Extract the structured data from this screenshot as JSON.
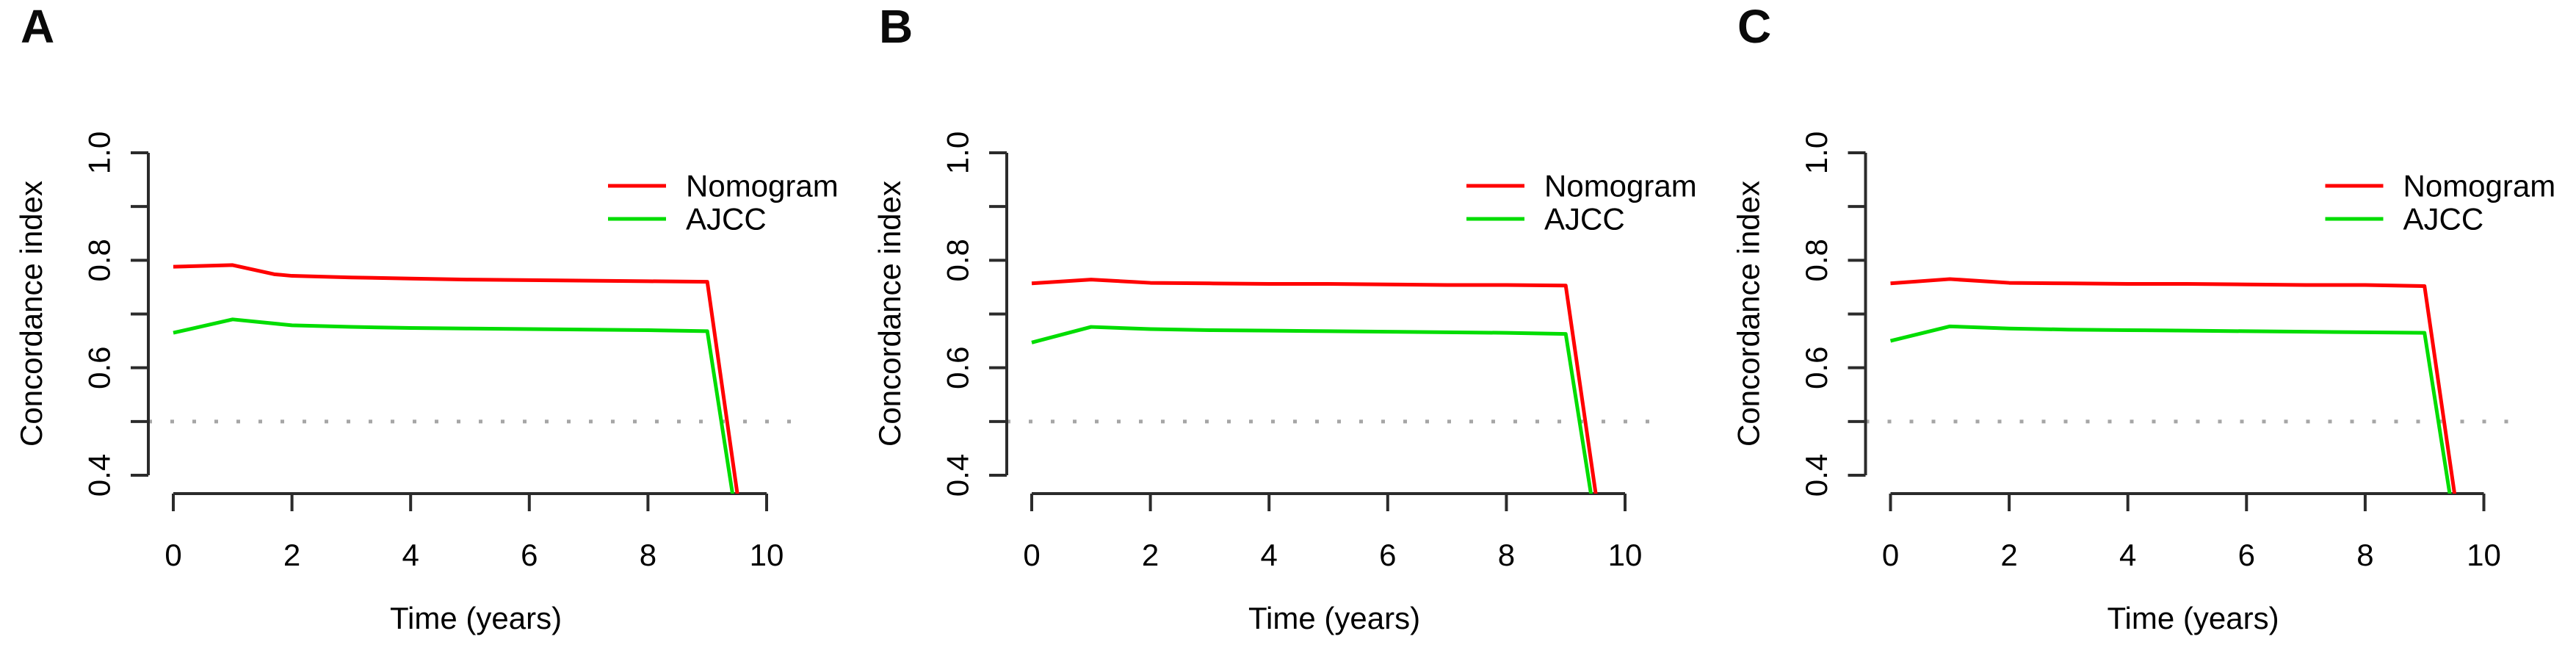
{
  "figure": {
    "background": "#ffffff",
    "description_title": "Concordance index over time, panels A, B, C"
  },
  "style": {
    "axis_color": "#2b2b2b",
    "text_color": "#000000",
    "ref_line_color": "#a6a6a6",
    "nomogram_color": "#ff0000",
    "ajcc_color": "#00dd00"
  },
  "chart_data": [
    {
      "label": "A",
      "type": "line",
      "xlabel": "Time (years)",
      "ylabel": "Concordance index",
      "x_axis_range": [
        0,
        10
      ],
      "y_axis_range": [
        0.4,
        1.0
      ],
      "x_ticks": [
        {
          "v": 0,
          "label": "0"
        },
        {
          "v": 2,
          "label": "2"
        },
        {
          "v": 4,
          "label": "4"
        },
        {
          "v": 6,
          "label": "6"
        },
        {
          "v": 8,
          "label": "8"
        },
        {
          "v": 10,
          "label": "10"
        }
      ],
      "y_ticks_all": [
        0.4,
        0.5,
        0.6,
        0.7,
        0.8,
        0.9,
        1.0
      ],
      "y_ticks_labeled": [
        {
          "v": 0.4,
          "label": "0.4"
        },
        {
          "v": 0.6,
          "label": "0.6"
        },
        {
          "v": 0.8,
          "label": "0.8"
        },
        {
          "v": 1.0,
          "label": "1.0"
        }
      ],
      "reference_line_y": 0.5,
      "grid": false,
      "legend_position": "top-right",
      "legend": [
        {
          "name": "Nomogram",
          "color": "#ff0000"
        },
        {
          "name": "AJCC",
          "color": "#00dd00"
        }
      ],
      "series": [
        {
          "name": "Nomogram",
          "color": "#ff0000",
          "points": [
            [
              0,
              0.788
            ],
            [
              1,
              0.791
            ],
            [
              1.7,
              0.774
            ],
            [
              2,
              0.771
            ],
            [
              3,
              0.768
            ],
            [
              4,
              0.766
            ],
            [
              5,
              0.764
            ],
            [
              6,
              0.763
            ],
            [
              7,
              0.762
            ],
            [
              8,
              0.761
            ],
            [
              9,
              0.76
            ],
            [
              9.52,
              0.355
            ]
          ]
        },
        {
          "name": "AJCC",
          "color": "#00dd00",
          "points": [
            [
              0,
              0.665
            ],
            [
              1,
              0.69
            ],
            [
              2,
              0.679
            ],
            [
              3,
              0.676
            ],
            [
              4,
              0.674
            ],
            [
              5,
              0.673
            ],
            [
              6,
              0.672
            ],
            [
              7,
              0.671
            ],
            [
              8,
              0.67
            ],
            [
              9,
              0.668
            ],
            [
              9.44,
              0.355
            ]
          ]
        }
      ]
    },
    {
      "label": "B",
      "type": "line",
      "xlabel": "Time (years)",
      "ylabel": "Concordance index",
      "x_axis_range": [
        0,
        10
      ],
      "y_axis_range": [
        0.4,
        1.0
      ],
      "x_ticks": [
        {
          "v": 0,
          "label": "0"
        },
        {
          "v": 2,
          "label": "2"
        },
        {
          "v": 4,
          "label": "4"
        },
        {
          "v": 6,
          "label": "6"
        },
        {
          "v": 8,
          "label": "8"
        },
        {
          "v": 10,
          "label": "10"
        }
      ],
      "y_ticks_all": [
        0.4,
        0.5,
        0.6,
        0.7,
        0.8,
        0.9,
        1.0
      ],
      "y_ticks_labeled": [
        {
          "v": 0.4,
          "label": "0.4"
        },
        {
          "v": 0.6,
          "label": "0.6"
        },
        {
          "v": 0.8,
          "label": "0.8"
        },
        {
          "v": 1.0,
          "label": "1.0"
        }
      ],
      "reference_line_y": 0.5,
      "grid": false,
      "legend_position": "top-right",
      "legend": [
        {
          "name": "Nomogram",
          "color": "#ff0000"
        },
        {
          "name": "AJCC",
          "color": "#00dd00"
        }
      ],
      "series": [
        {
          "name": "Nomogram",
          "color": "#ff0000",
          "points": [
            [
              0,
              0.757
            ],
            [
              1,
              0.764
            ],
            [
              2,
              0.758
            ],
            [
              3,
              0.757
            ],
            [
              4,
              0.756
            ],
            [
              5,
              0.756
            ],
            [
              6,
              0.755
            ],
            [
              7,
              0.754
            ],
            [
              8,
              0.754
            ],
            [
              9,
              0.753
            ],
            [
              9.52,
              0.355
            ]
          ]
        },
        {
          "name": "AJCC",
          "color": "#00dd00",
          "points": [
            [
              0,
              0.647
            ],
            [
              1,
              0.676
            ],
            [
              2,
              0.672
            ],
            [
              3,
              0.67
            ],
            [
              4,
              0.669
            ],
            [
              5,
              0.668
            ],
            [
              6,
              0.667
            ],
            [
              7,
              0.666
            ],
            [
              8,
              0.665
            ],
            [
              9,
              0.663
            ],
            [
              9.44,
              0.355
            ]
          ]
        }
      ]
    },
    {
      "label": "C",
      "type": "line",
      "xlabel": "Time (years)",
      "ylabel": "Concordance index",
      "x_axis_range": [
        0,
        10
      ],
      "y_axis_range": [
        0.4,
        1.0
      ],
      "x_ticks": [
        {
          "v": 0,
          "label": "0"
        },
        {
          "v": 2,
          "label": "2"
        },
        {
          "v": 4,
          "label": "4"
        },
        {
          "v": 6,
          "label": "6"
        },
        {
          "v": 8,
          "label": "8"
        },
        {
          "v": 10,
          "label": "10"
        }
      ],
      "y_ticks_all": [
        0.4,
        0.5,
        0.6,
        0.7,
        0.8,
        0.9,
        1.0
      ],
      "y_ticks_labeled": [
        {
          "v": 0.4,
          "label": "0.4"
        },
        {
          "v": 0.6,
          "label": "0.6"
        },
        {
          "v": 0.8,
          "label": "0.8"
        },
        {
          "v": 1.0,
          "label": "1.0"
        }
      ],
      "reference_line_y": 0.5,
      "grid": false,
      "legend_position": "top-right",
      "legend": [
        {
          "name": "Nomogram",
          "color": "#ff0000"
        },
        {
          "name": "AJCC",
          "color": "#00dd00"
        }
      ],
      "series": [
        {
          "name": "Nomogram",
          "color": "#ff0000",
          "points": [
            [
              0,
              0.757
            ],
            [
              1,
              0.765
            ],
            [
              2,
              0.758
            ],
            [
              3,
              0.757
            ],
            [
              4,
              0.756
            ],
            [
              5,
              0.756
            ],
            [
              6,
              0.755
            ],
            [
              7,
              0.754
            ],
            [
              8,
              0.754
            ],
            [
              9,
              0.752
            ],
            [
              9.52,
              0.355
            ]
          ]
        },
        {
          "name": "AJCC",
          "color": "#00dd00",
          "points": [
            [
              0,
              0.65
            ],
            [
              1,
              0.677
            ],
            [
              2,
              0.673
            ],
            [
              3,
              0.671
            ],
            [
              4,
              0.67
            ],
            [
              5,
              0.669
            ],
            [
              6,
              0.668
            ],
            [
              7,
              0.667
            ],
            [
              8,
              0.666
            ],
            [
              9,
              0.665
            ],
            [
              9.44,
              0.355
            ]
          ]
        }
      ]
    }
  ]
}
